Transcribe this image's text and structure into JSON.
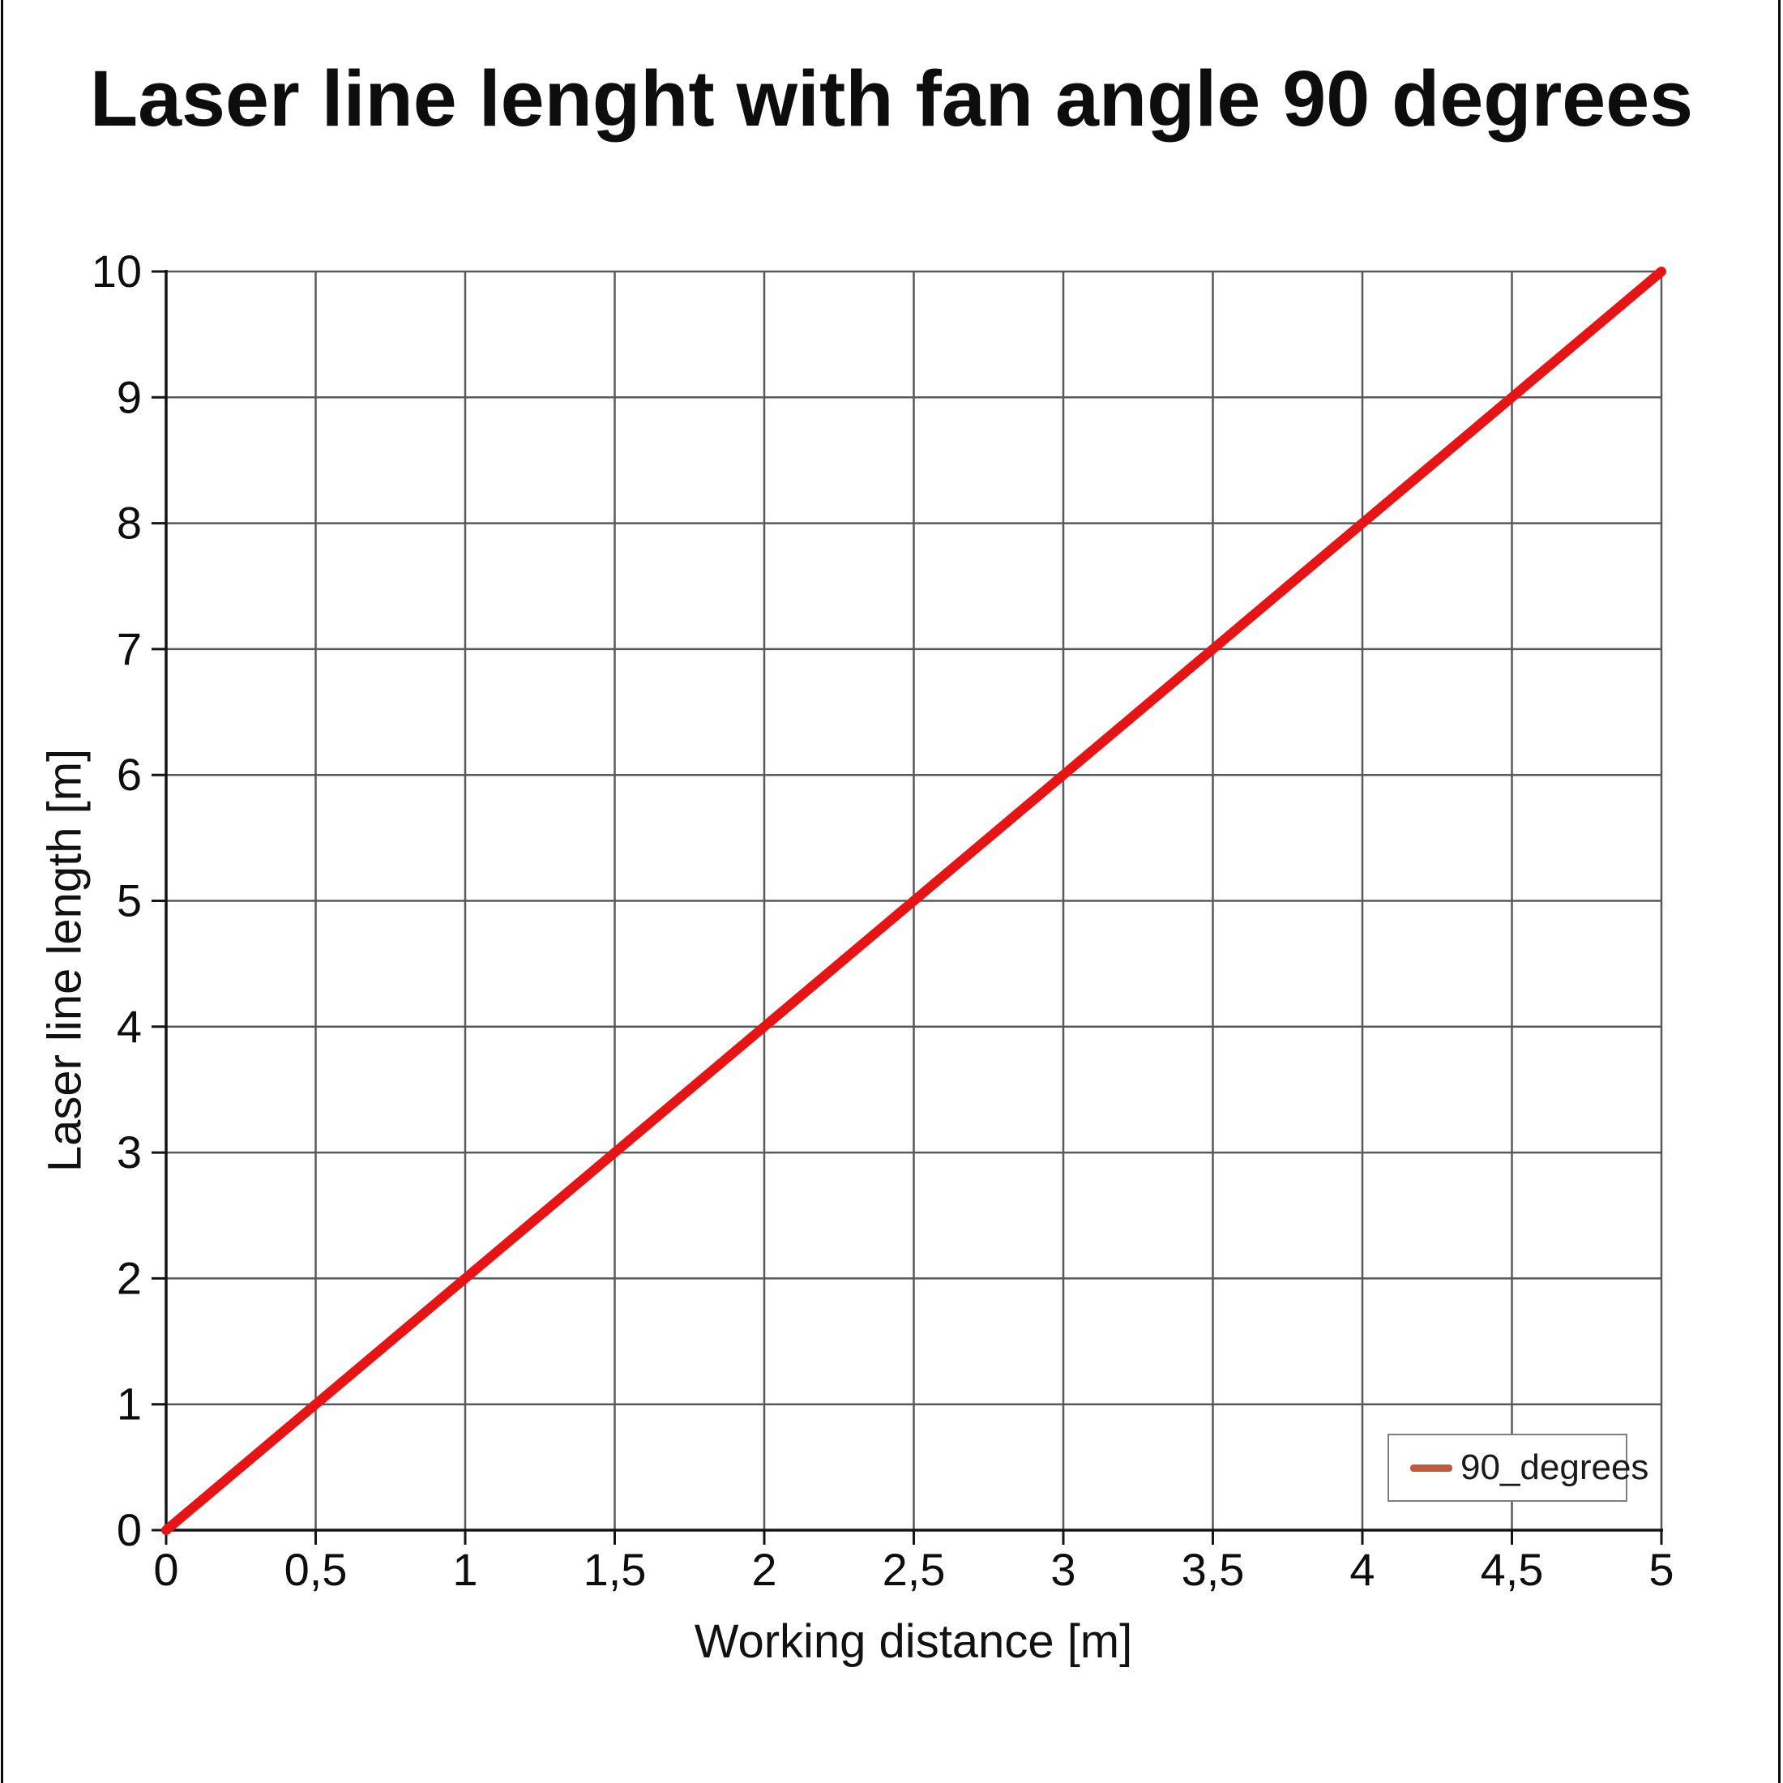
{
  "chart_data": {
    "type": "line",
    "title": "Laser line lenght with fan angle 90 degrees",
    "xlabel": "Working distance [m]",
    "ylabel": "Laser line length [m]",
    "xlim": [
      0,
      5
    ],
    "ylim": [
      0,
      10
    ],
    "x_ticks": [
      0,
      0.5,
      1,
      1.5,
      2,
      2.5,
      3,
      3.5,
      4,
      4.5,
      5
    ],
    "x_tick_labels": [
      "0",
      "0,5",
      "1",
      "1,5",
      "2",
      "2,5",
      "3",
      "3,5",
      "4",
      "4,5",
      "5"
    ],
    "y_ticks": [
      0,
      1,
      2,
      3,
      4,
      5,
      6,
      7,
      8,
      9,
      10
    ],
    "y_tick_labels": [
      "0",
      "1",
      "2",
      "3",
      "4",
      "5",
      "6",
      "7",
      "8",
      "9",
      "10"
    ],
    "grid": true,
    "legend_position": "bottom-right",
    "series": [
      {
        "name": "90_degrees",
        "x": [
          0,
          5
        ],
        "y": [
          0,
          10
        ],
        "color": "#e61414",
        "legend_swatch_color": "#c05a3c"
      }
    ]
  },
  "style": {
    "grid_color": "#58595b",
    "axis_color": "#141414",
    "tick_label_color": "#0d0d0d",
    "page_border_color": "#0a0a0a",
    "legend_border_color": "#7f7f7f"
  }
}
